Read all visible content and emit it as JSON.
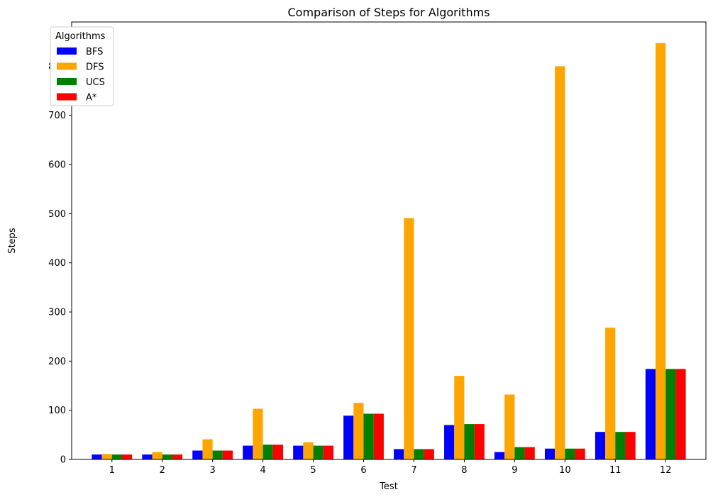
{
  "chart_data": {
    "type": "bar",
    "title": "Comparison of Steps for Algorithms",
    "xlabel": "Test",
    "ylabel": "Steps",
    "categories": [
      "1",
      "2",
      "3",
      "4",
      "5",
      "6",
      "7",
      "8",
      "9",
      "10",
      "11",
      "12"
    ],
    "ylim": [
      0,
      890
    ],
    "yticks": [
      0,
      100,
      200,
      300,
      400,
      500,
      600,
      700,
      800
    ],
    "grid": false,
    "legend": {
      "title": "Algorithms",
      "position": "top-left"
    },
    "series": [
      {
        "name": "BFS",
        "color": "#0000ff",
        "values": [
          10,
          10,
          18,
          28,
          28,
          89,
          21,
          70,
          15,
          22,
          56,
          184
        ]
      },
      {
        "name": "DFS",
        "color": "#ffa500",
        "values": [
          11,
          15,
          41,
          103,
          35,
          115,
          491,
          170,
          132,
          800,
          268,
          847
        ]
      },
      {
        "name": "UCS",
        "color": "#008000",
        "values": [
          10,
          10,
          18,
          30,
          28,
          93,
          21,
          72,
          25,
          22,
          56,
          184
        ]
      },
      {
        "name": "A*",
        "color": "#ff0000",
        "values": [
          10,
          10,
          18,
          30,
          28,
          93,
          21,
          72,
          25,
          22,
          56,
          184
        ]
      }
    ]
  }
}
